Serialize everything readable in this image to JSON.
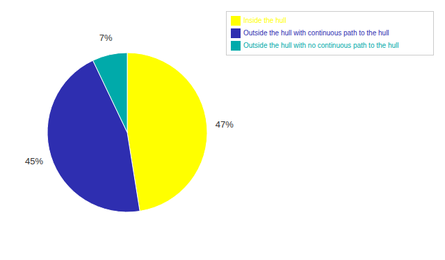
{
  "chart_data": {
    "type": "pie",
    "categories": [
      "Inside the hull",
      "Outside the hull with continuous path to the hull",
      "Outside the hull with no continuous path to the hull"
    ],
    "values": [
      47,
      45,
      7
    ],
    "value_labels": [
      "47%",
      "45%",
      "7%"
    ],
    "colors": [
      "#FFFF00",
      "#2E2EB0",
      "#00AAAA"
    ],
    "data_labels": true,
    "legend": "upper right"
  }
}
